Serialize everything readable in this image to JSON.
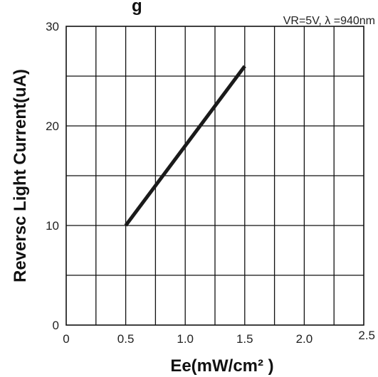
{
  "chart_data": {
    "type": "line",
    "title_fragment": "g",
    "annotation": "VR=5V, λ =940nm",
    "xlabel": "Ee(mW/cm² )",
    "ylabel": "Reversc Light Current(uA)",
    "xlim": [
      0,
      2.5
    ],
    "ylim": [
      0,
      30
    ],
    "x_ticks": [
      0,
      0.5,
      1.0,
      1.5,
      2.0,
      2.5
    ],
    "x_tick_labels": [
      "0",
      "0.5",
      "1.0",
      "1.5",
      "2.0",
      "2.5"
    ],
    "y_ticks": [
      0,
      10,
      20,
      30
    ],
    "y_tick_labels": [
      "0",
      "10",
      "20",
      "30"
    ],
    "x_grid_step": 0.25,
    "y_grid_step": 5,
    "grid": true,
    "series": [
      {
        "x": [
          0.5,
          1.5
        ],
        "y": [
          10,
          26
        ],
        "color": "#1a1a1a"
      }
    ]
  }
}
